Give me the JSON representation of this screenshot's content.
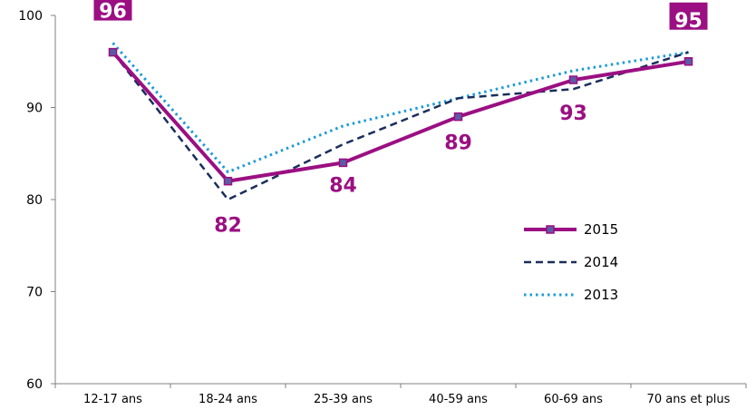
{
  "chart_data": {
    "type": "line",
    "categories": [
      "12-17 ans",
      "18-24 ans",
      "25-39 ans",
      "40-59 ans",
      "60-69 ans",
      "70 ans et plus"
    ],
    "ylim": [
      60,
      100
    ],
    "yticks": [
      60,
      70,
      80,
      90,
      100
    ],
    "grid": false,
    "legend_position": "right",
    "series": [
      {
        "name": "2015",
        "values": [
          96,
          82,
          84,
          89,
          93,
          95
        ],
        "color": "#9B0F82",
        "style": "solid",
        "marker": "square"
      },
      {
        "name": "2014",
        "values": [
          96,
          80,
          86,
          91,
          92,
          96
        ],
        "color": "#1A2E5C",
        "style": "dashed"
      },
      {
        "name": "2013",
        "values": [
          97,
          83,
          88,
          91,
          94,
          96
        ],
        "color": "#1D9BD7",
        "style": "dotted"
      }
    ],
    "data_labels": [
      "96",
      "82",
      "84",
      "89",
      "93",
      "95"
    ],
    "boxed_labels": [
      0,
      5
    ]
  }
}
